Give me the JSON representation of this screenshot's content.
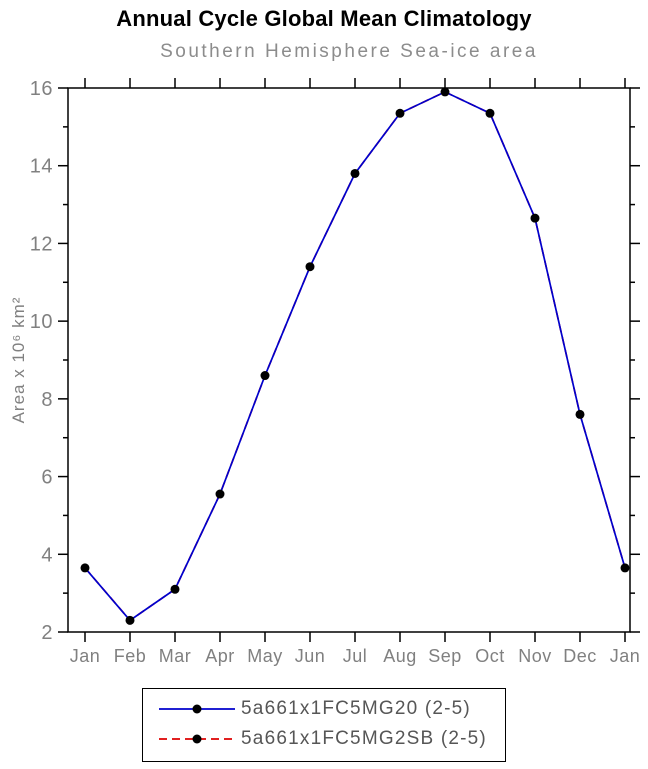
{
  "title": "Annual Cycle Global Mean Climatology",
  "subtitle": "Southern Hemisphere Sea-ice area",
  "chart_data": {
    "type": "line",
    "categories": [
      "Jan",
      "Feb",
      "Mar",
      "Apr",
      "May",
      "Jun",
      "Jul",
      "Aug",
      "Sep",
      "Oct",
      "Nov",
      "Dec",
      "Jan"
    ],
    "series": [
      {
        "name": "5a661x1FC5MG20 (2-5)",
        "color": "#0000cc",
        "dash": "solid",
        "marker_color": "#000000",
        "values": [
          3.65,
          2.3,
          3.1,
          5.55,
          8.6,
          11.4,
          13.8,
          15.35,
          15.9,
          15.35,
          12.65,
          7.6,
          3.65
        ]
      },
      {
        "name": "5a661x1FC5MG2SB (2-5)",
        "color": "#dd0000",
        "dash": "dashed",
        "marker_color": "#000000",
        "values": [
          3.65,
          2.3,
          3.1,
          5.55,
          8.6,
          11.4,
          13.8,
          15.35,
          15.9,
          15.35,
          12.65,
          7.6,
          3.65
        ]
      }
    ],
    "xlabel": "",
    "ylabel": "Area x 10⁶ km²",
    "ylim": [
      2,
      16
    ],
    "yticks": [
      2,
      4,
      6,
      8,
      10,
      12,
      14,
      16
    ],
    "y_minor_step": 1,
    "grid": false,
    "legend_position": "bottom",
    "frame_color": "#000000",
    "tick_label_color": "#808080"
  }
}
